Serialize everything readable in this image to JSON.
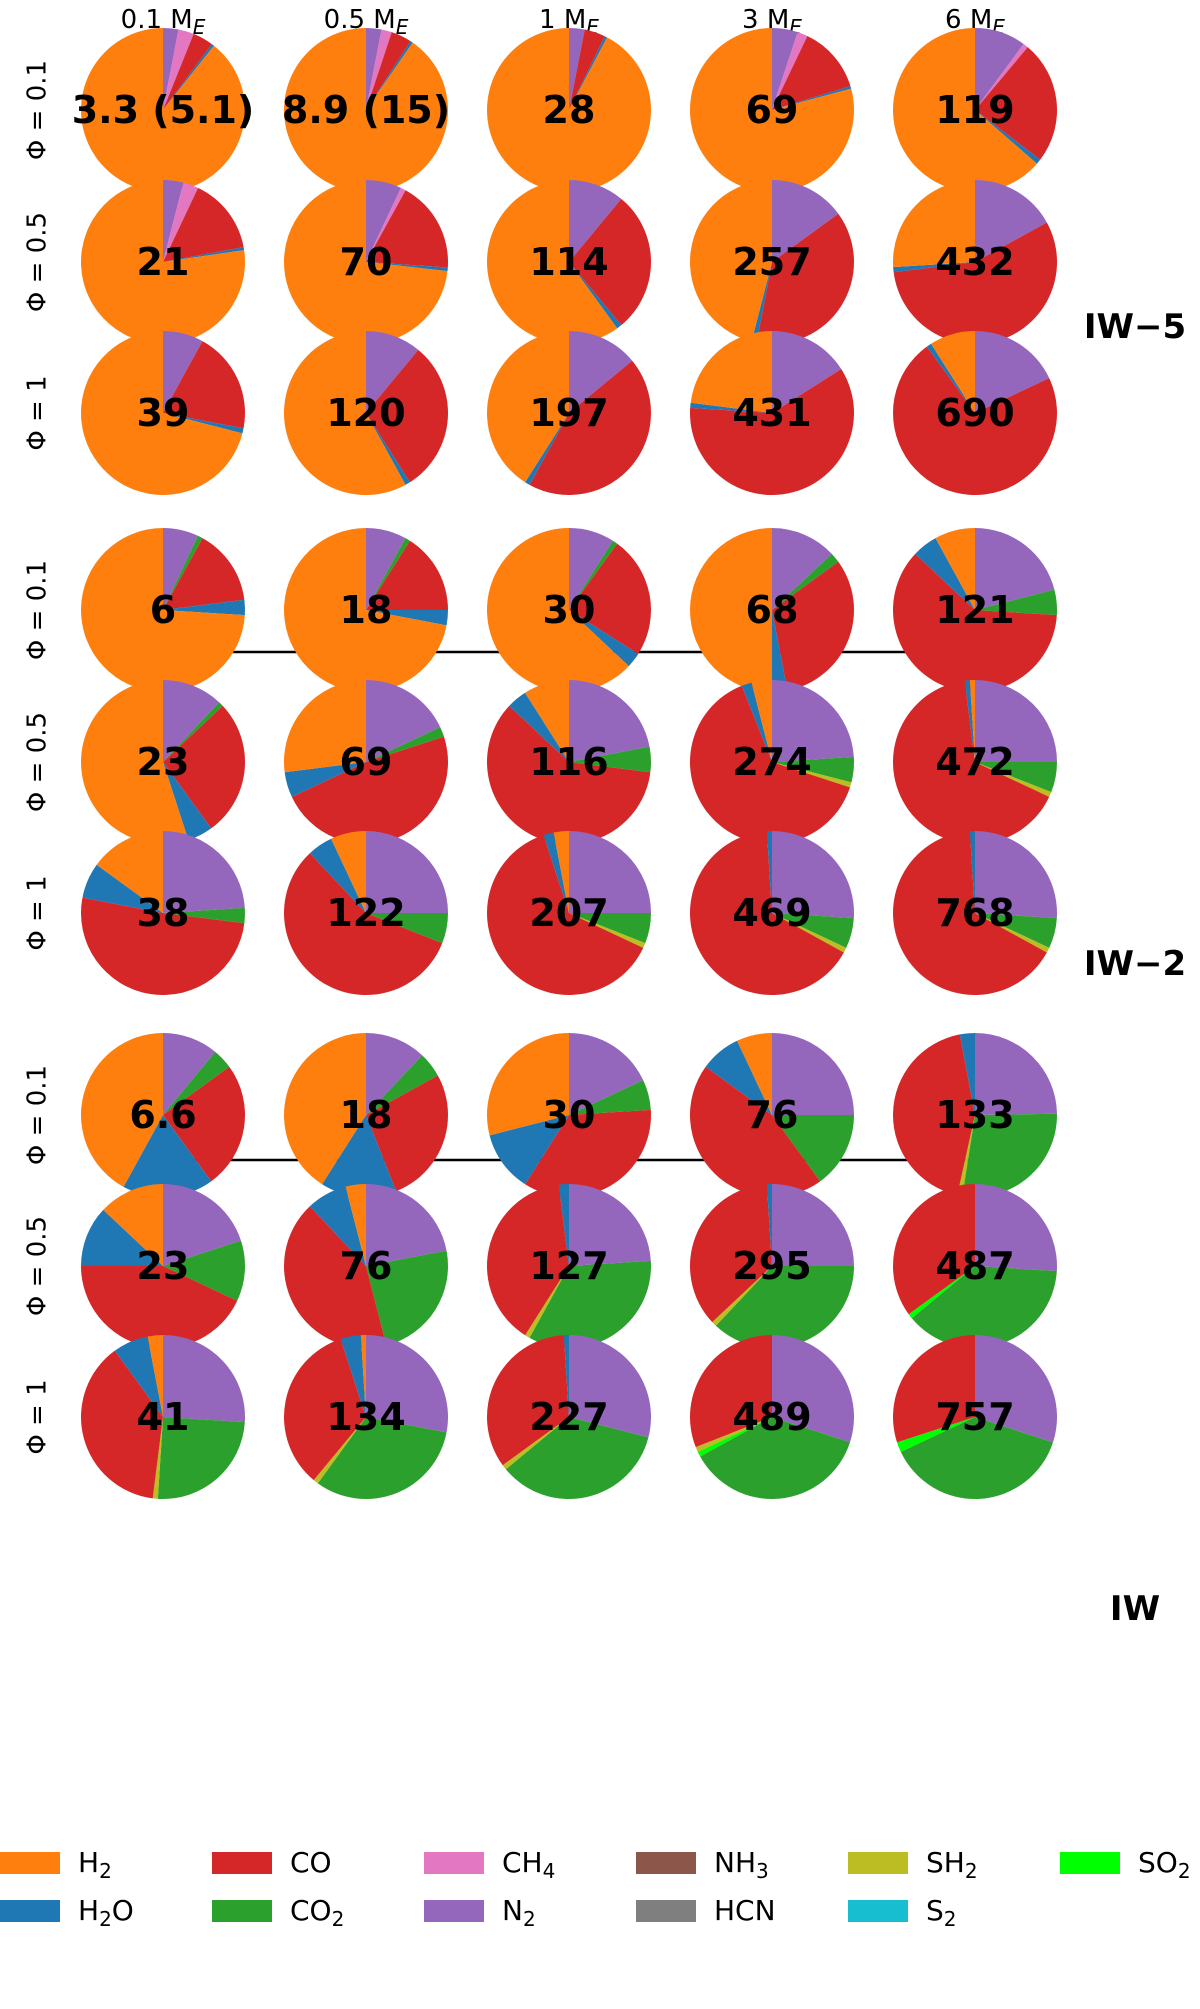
{
  "chart_data": {
    "type": "pie",
    "columns": [
      "0.1 M",
      "0.5 M",
      "1 M",
      "3 M",
      "6 M"
    ],
    "column_subscript": "E",
    "rows": [
      "Φ = 0.1",
      "Φ = 0.5",
      "Φ = 1"
    ],
    "groups": [
      {
        "label": "IW−5",
        "cells": [
          [
            {
              "value": "3.3 (5.1)",
              "H2": 88,
              "CH4": 3,
              "N2": 3,
              "CO": 4,
              "H2O": 0.5
            },
            {
              "value": "8.9 (15)",
              "N2": 3,
              "CH4": 2,
              "CO": 4,
              "H2O": 0.5,
              "H2": 89
            },
            {
              "value": "28",
              "N2": 3,
              "CO": 4,
              "H2O": 0.5,
              "H2": 90
            },
            {
              "value": "69",
              "N2": 5,
              "CH4": 2,
              "CO": 13,
              "H2O": 0.5,
              "H2": 78
            },
            {
              "value": "119",
              "N2": 10,
              "CH4": 1,
              "CO": 24,
              "H2O": 1,
              "H2": 63
            }
          ],
          [
            {
              "value": "21",
              "N2": 4,
              "CH4": 3,
              "CO": 15,
              "H2O": 0.6,
              "H2": 77
            },
            {
              "value": "70",
              "N2": 7,
              "CH4": 1,
              "CO": 18,
              "H2O": 0.7,
              "H2": 73
            },
            {
              "value": "114",
              "N2": 11,
              "CO": 28,
              "H2O": 1,
              "H2": 60
            },
            {
              "value": "257",
              "N2": 15,
              "CO": 38,
              "H2O": 1,
              "H2": 46
            },
            {
              "value": "432",
              "N2": 17,
              "CO": 56,
              "H2O": 1,
              "H2": 26
            }
          ],
          [
            {
              "value": "39",
              "N2": 8,
              "CO": 20,
              "H2O": 1,
              "H2": 71
            },
            {
              "value": "120",
              "N2": 11,
              "CO": 30,
              "H2O": 1,
              "H2": 58
            },
            {
              "value": "197",
              "N2": 14,
              "CO": 44,
              "H2O": 1,
              "H2": 41
            },
            {
              "value": "431",
              "N2": 16,
              "CO": 60,
              "H2O": 1,
              "H2": 23
            },
            {
              "value": "690",
              "N2": 18,
              "CO": 72,
              "H2O": 1,
              "H2": 9
            }
          ]
        ]
      },
      {
        "label": "IW−2",
        "cells": [
          [
            {
              "value": "6",
              "N2": 7,
              "CO2": 1,
              "CO": 15,
              "H2O": 3,
              "H2": 74
            },
            {
              "value": "18",
              "N2": 8,
              "CO2": 1,
              "CO": 16,
              "H2O": 3,
              "H2": 72
            },
            {
              "value": "30",
              "N2": 9,
              "CO2": 1,
              "CO": 24,
              "H2O": 3,
              "H2": 63
            },
            {
              "value": "68",
              "N2": 13,
              "CO2": 2,
              "CO": 32,
              "H2O": 3,
              "H2": 50
            },
            {
              "value": "121",
              "N2": 21,
              "CO2": 5,
              "CO": 61,
              "H2O": 5,
              "H2": 8
            }
          ],
          [
            {
              "value": "23",
              "N2": 12,
              "CO2": 1,
              "CO": 27,
              "H2O": 5,
              "H2": 55
            },
            {
              "value": "69",
              "N2": 18,
              "CO2": 2,
              "CO": 48,
              "H2O": 5,
              "H2": 27
            },
            {
              "value": "116",
              "N2": 22,
              "CO2": 5,
              "CO": 60,
              "H2O": 4,
              "H2": 9
            },
            {
              "value": "274",
              "N2": 24,
              "CO2": 5,
              "CO": 64,
              "H2O": 2,
              "SH2": 1,
              "H2": 4
            },
            {
              "value": "472",
              "N2": 25,
              "CO2": 6,
              "CO": 66,
              "H2O": 1,
              "SH2": 1,
              "H2": 1
            }
          ],
          [
            {
              "value": "38",
              "N2": 24,
              "CO2": 3,
              "CO": 51,
              "H2O": 7,
              "H2": 15
            },
            {
              "value": "122",
              "N2": 25,
              "CO2": 6,
              "CO": 57,
              "H2O": 5,
              "H2": 7
            },
            {
              "value": "207",
              "N2": 25,
              "CO2": 6,
              "CO": 63,
              "H2O": 2,
              "SH2": 1,
              "H2": 3
            },
            {
              "value": "469",
              "N2": 26,
              "CO2": 6,
              "CO": 66,
              "H2O": 1,
              "SH2": 1
            },
            {
              "value": "768",
              "N2": 26,
              "CO2": 6,
              "CO": 66,
              "H2O": 1,
              "SH2": 1
            }
          ]
        ]
      },
      {
        "label": "IW",
        "cells": [
          [
            {
              "value": "6.6",
              "N2": 11,
              "CO2": 4,
              "CO": 25,
              "H2O": 18,
              "H2": 42
            },
            {
              "value": "18",
              "N2": 12,
              "CO2": 5,
              "CO": 27,
              "H2O": 15,
              "H2": 41
            },
            {
              "value": "30",
              "N2": 18,
              "CO2": 6,
              "CO": 35,
              "H2O": 12,
              "H2": 29
            },
            {
              "value": "76",
              "N2": 25,
              "CO2": 15,
              "CO": 45,
              "H2O": 8,
              "H2": 7
            },
            {
              "value": "133",
              "N2": 25,
              "CO2": 28,
              "CO": 44,
              "H2O": 3,
              "SH2": 1
            }
          ],
          [
            {
              "value": "23",
              "N2": 20,
              "CO2": 12,
              "CO": 43,
              "H2O": 12,
              "H2": 13
            },
            {
              "value": "76",
              "N2": 22,
              "CO2": 24,
              "CO": 42,
              "H2O": 8,
              "H2": 4
            },
            {
              "value": "127",
              "N2": 24,
              "CO2": 34,
              "CO": 39,
              "H2O": 2,
              "SH2": 1
            },
            {
              "value": "295",
              "N2": 25,
              "CO2": 37,
              "CO": 36,
              "H2O": 1,
              "SH2": 1
            },
            {
              "value": "487",
              "N2": 26,
              "CO2": 38,
              "CO": 35,
              "SO2": 1
            }
          ],
          [
            {
              "value": "41",
              "N2": 26,
              "CO2": 25,
              "CO": 38,
              "H2O": 7,
              "SH2": 1,
              "H2": 3
            },
            {
              "value": "134",
              "N2": 28,
              "CO2": 32,
              "CO": 34,
              "H2O": 4,
              "SH2": 1,
              "H2": 1
            },
            {
              "value": "227",
              "N2": 29,
              "CO2": 35,
              "CO": 34,
              "H2O": 1,
              "SH2": 1
            },
            {
              "value": "489",
              "N2": 30,
              "CO2": 37,
              "CO": 31,
              "SO2": 1,
              "SH2": 1
            },
            {
              "value": "757",
              "N2": 30,
              "CO2": 38,
              "CO": 30,
              "SO2": 2
            }
          ]
        ]
      }
    ],
    "species_order": [
      "N2",
      "CH4",
      "CO2",
      "SO2",
      "SH2",
      "CO",
      "H2O",
      "H2"
    ],
    "legend": [
      {
        "key": "H2",
        "base": "H",
        "sub": "2",
        "color": "#ff7f0e"
      },
      {
        "key": "CO",
        "base": "CO",
        "sub": "",
        "color": "#d62728"
      },
      {
        "key": "CH4",
        "base": "CH",
        "sub": "4",
        "color": "#e377c2"
      },
      {
        "key": "NH3",
        "base": "NH",
        "sub": "3",
        "color": "#8c564b"
      },
      {
        "key": "SH2",
        "base": "SH",
        "sub": "2",
        "color": "#bcbd22"
      },
      {
        "key": "SO2",
        "base": "SO",
        "sub": "2",
        "color": "#00ff00"
      },
      {
        "key": "H2O",
        "base": "H",
        "sub": "2",
        "tail": "O",
        "color": "#1f77b4"
      },
      {
        "key": "CO2",
        "base": "CO",
        "sub": "2",
        "color": "#2ca02c"
      },
      {
        "key": "N2",
        "base": "N",
        "sub": "2",
        "color": "#9467bd"
      },
      {
        "key": "HCN",
        "base": "HCN",
        "sub": "",
        "color": "#7f7f7f"
      },
      {
        "key": "S2",
        "base": "S",
        "sub": "2",
        "color": "#17becf"
      }
    ]
  }
}
